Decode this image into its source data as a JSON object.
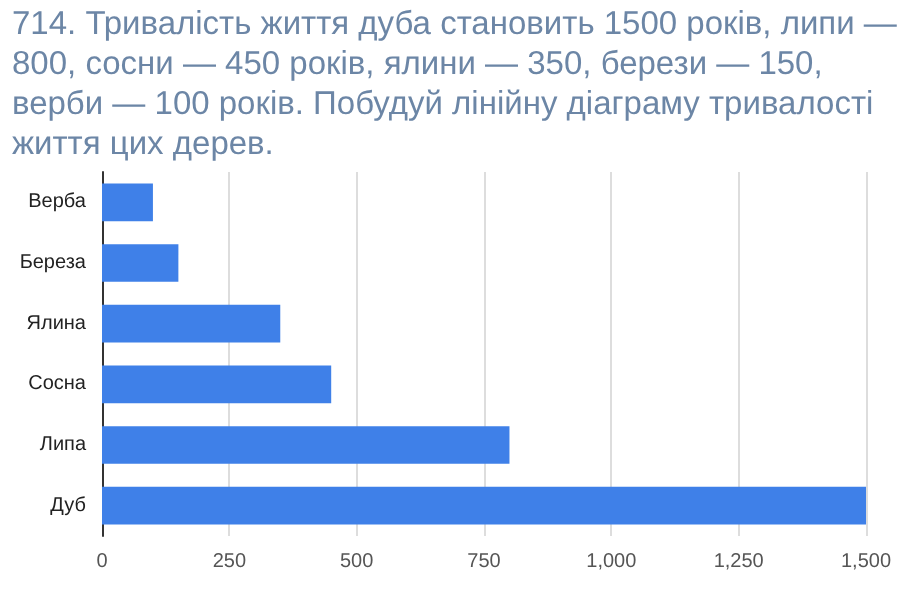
{
  "chart_data": {
    "type": "bar",
    "orientation": "horizontal",
    "title": "714. Тривалість життя дуба становить 1500 років, липи — 800, сосни — 450 років, ялини — 350, берези — 150, верби — 100 років. Побудуй лінійну діаграму тривалості життя цих дерев.",
    "categories": [
      "Верба",
      "Береза",
      "Ялина",
      "Сосна",
      "Липа",
      "Дуб"
    ],
    "values": [
      100,
      150,
      350,
      450,
      800,
      1500
    ],
    "color": "#3f80e8",
    "xlim": [
      0,
      1500
    ],
    "xticks": [
      0,
      250,
      500,
      750,
      {
        "value": 1000,
        "label": "1,000"
      },
      {
        "value": 1250,
        "label": "1,250"
      },
      {
        "value": 1500,
        "label": "1,500"
      }
    ],
    "grid": "x"
  }
}
